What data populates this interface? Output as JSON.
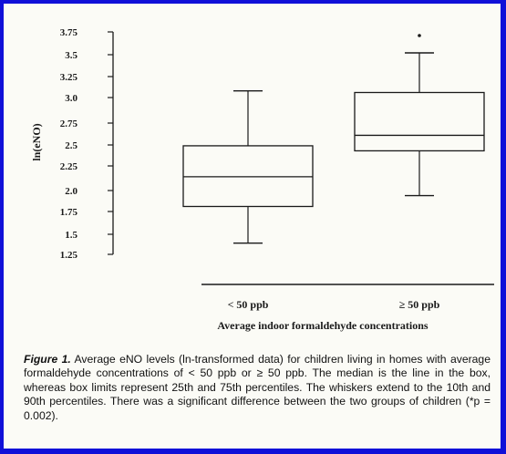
{
  "chart_data": {
    "type": "box",
    "ylabel": "ln(eNO)",
    "xlabel": "Average indoor formaldehyde concentrations",
    "yticks": [
      "3.75",
      "3.5",
      "3.25",
      "3.0",
      "2.75",
      "2.5",
      "2.25",
      "2.0",
      "1.75",
      "1.5",
      "1.25"
    ],
    "ylim": [
      1.25,
      3.75
    ],
    "categories": [
      "< 50 ppb",
      "≥ 50 ppb"
    ],
    "boxes": [
      {
        "category": "< 50 ppb",
        "p10": 1.39,
        "q1": 1.81,
        "median": 2.14,
        "q3": 2.49,
        "p90": 3.08,
        "outliers": []
      },
      {
        "category": "≥ 50 ppb",
        "p10": 1.94,
        "q1": 2.43,
        "median": 2.61,
        "q3": 3.06,
        "p90": 3.52,
        "outliers": [
          3.71
        ]
      }
    ],
    "grid": false
  },
  "caption": {
    "label": "Figure 1.",
    "text": "Average eNO levels (ln-transformed data) for children living in homes with average formaldehyde concentrations of < 50 ppb or ≥ 50 ppb. The median is the line in the box, whereas box limits represent 25th and 75th percentiles. The whiskers extend to the 10th and 90th percentiles. There was a significant difference between the two groups of children (*p = 0.002)."
  },
  "colors": {
    "border": "#1010d8",
    "paper": "#fbfbf6",
    "ink": "#1a1a1a"
  }
}
